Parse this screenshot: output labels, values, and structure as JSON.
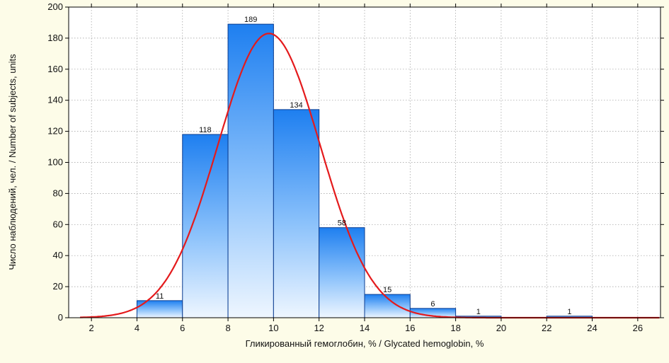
{
  "chart_data": {
    "type": "bar",
    "subtype": "histogram",
    "title": "",
    "xlabel": "Гликированный гемоглобин, % / Glycated hemoglobin, %",
    "ylabel": "Число наблюдений, чел. / Number of subjects, units",
    "xlim": [
      1,
      27
    ],
    "ylim": [
      0,
      200
    ],
    "xticks": [
      2,
      4,
      6,
      8,
      10,
      12,
      14,
      16,
      18,
      20,
      22,
      24,
      26
    ],
    "yticks": [
      0,
      20,
      40,
      60,
      80,
      100,
      120,
      140,
      160,
      180,
      200
    ],
    "bins": [
      {
        "start": 4,
        "end": 6,
        "value": 11,
        "label": "11"
      },
      {
        "start": 6,
        "end": 8,
        "value": 118,
        "label": "118"
      },
      {
        "start": 8,
        "end": 10,
        "value": 189,
        "label": "189"
      },
      {
        "start": 10,
        "end": 12,
        "value": 134,
        "label": "134"
      },
      {
        "start": 12,
        "end": 14,
        "value": 58,
        "label": "58"
      },
      {
        "start": 14,
        "end": 16,
        "value": 15,
        "label": "15"
      },
      {
        "start": 16,
        "end": 18,
        "value": 6,
        "label": "6"
      },
      {
        "start": 18,
        "end": 20,
        "value": 1,
        "label": "1"
      },
      {
        "start": 22,
        "end": 24,
        "value": 1,
        "label": "1"
      }
    ],
    "fit_curve": {
      "type": "normal",
      "mean": 9.8,
      "sd": 2.25,
      "peak": 183,
      "color": "#e41a1c"
    },
    "grid": true,
    "colors": {
      "bar_top": "#1e7ff0",
      "bar_bottom": "#e9f3fe",
      "bar_edge": "#0b3d91",
      "curve": "#e41a1c",
      "grid": "#9a9a9a"
    }
  }
}
